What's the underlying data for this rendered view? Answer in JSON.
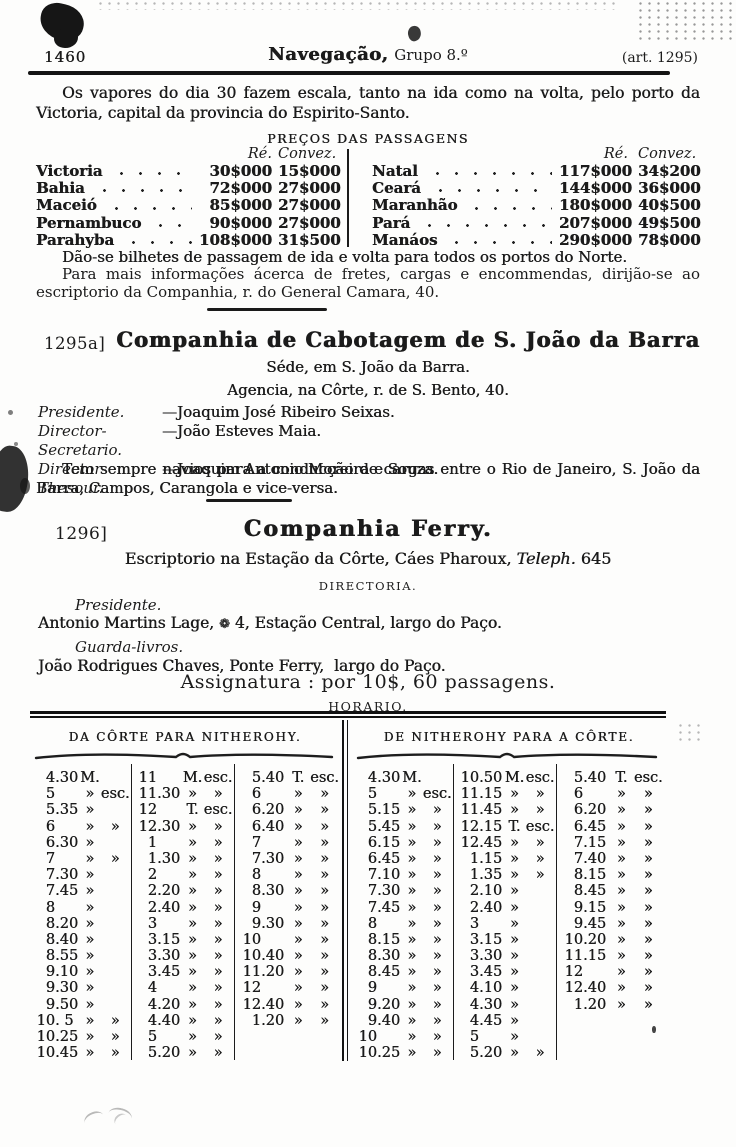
{
  "page": {
    "number": "1460",
    "header_title_bold": "Navegação,",
    "header_title_rest": "Grupo 8.º",
    "header_right": "(art. 1295)"
  },
  "intro": {
    "text": "Os vapores do dia 30 fazem escala, tanto na ida como na volta, pelo porto da Victoria, capital da provincia do Espirito-Santo."
  },
  "prices": {
    "title": "PREÇOS DAS PASSAGENS",
    "col_headers": [
      "Ré.",
      "Convez."
    ],
    "left": [
      {
        "name": "Victoria",
        "re": "30$000",
        "convez": "15$000"
      },
      {
        "name": "Bahia",
        "re": "72$000",
        "convez": "27$000"
      },
      {
        "name": "Maceió",
        "re": "85$000",
        "convez": "27$000"
      },
      {
        "name": "Pernambuco",
        "re": "90$000",
        "convez": "27$000"
      },
      {
        "name": "Parahyba",
        "re": "108$000",
        "convez": "31$500"
      }
    ],
    "right": [
      {
        "name": "Natal",
        "re": "117$000",
        "convez": "34$200"
      },
      {
        "name": "Ceará",
        "re": "144$000",
        "convez": "36$000"
      },
      {
        "name": "Maranhão",
        "re": "180$000",
        "convez": "40$500"
      },
      {
        "name": "Pará",
        "re": "207$000",
        "convez": "49$500"
      },
      {
        "name": "Manáos",
        "re": "290$000",
        "convez": "78$000"
      }
    ],
    "note1": "Dão-se bilhetes de passagem de ida e volta para todos os portos do Norte.",
    "note2": "Para mais informações ácerca de fretes, cargas e encommendas, dirijão-se ao escriptorio da Companhia, r. do General Camara, 40."
  },
  "cabotagem": {
    "ref": "1295a]",
    "title": "Companhia de Cabotagem de S. João da Barra",
    "line1": "Séde, em S. João da Barra.",
    "line2": "Agencia, na Côrte, r. de S. Bento, 40.",
    "officers": [
      {
        "role": "Presidente.",
        "name": "—Joaquim José Ribeiro Seixas."
      },
      {
        "role": "Director-Secretario.",
        "name": "—João Esteves Maia."
      },
      {
        "role": "Director-Thesour.",
        "name": "—Joaquim Antonio Moreira e Souza."
      }
    ],
    "note": "Tem sempre navios para a conducção de cargas entre o Rio de Janeiro, S. João da Barra, Campos, Carangola e vice-versa."
  },
  "ferry": {
    "ref": "1296]",
    "title": "Companhia Ferry.",
    "office_pre": "Escriptorio na Estação da Côrte, Cáes Pharoux, ",
    "office_teleph": "Teleph.",
    "office_num": " 645",
    "directoria": "DIRECTORIA.",
    "president_role": "Presidente.",
    "president_pre": "Antonio Martins Lage, ",
    "president_ornament": "❁",
    "president_post": " 4, Estação Central, largo do Paço.",
    "bookkeeper_role": "Guarda-livros.",
    "bookkeeper_line": "João Rodrigues Chaves, Ponte Ferry,  largo do Paço.",
    "signature": "Assignatura : por 10$, 60 passagens.",
    "horario_title": "HORARIO."
  },
  "horario": {
    "left_header": "DA CÔRTE PARA NITHEROHY.",
    "right_header": "DE NITHEROHY PARA A CÔRTE.",
    "columns": [
      {
        "entries": [
          {
            "t": "4.30",
            "u": "M.",
            "e": ""
          },
          {
            "t": "5",
            "u": "»",
            "e": "esc."
          },
          {
            "t": "5.35",
            "u": "»",
            "e": ""
          },
          {
            "t": "6",
            "u": "»",
            "e": "»"
          },
          {
            "t": "6.30",
            "u": "»",
            "e": ""
          },
          {
            "t": "7",
            "u": "»",
            "e": "»"
          },
          {
            "t": "7.30",
            "u": "»",
            "e": ""
          },
          {
            "t": "7.45",
            "u": "»",
            "e": ""
          },
          {
            "t": "8",
            "u": "»",
            "e": ""
          },
          {
            "t": "8.20",
            "u": "»",
            "e": ""
          },
          {
            "t": "8.40",
            "u": "»",
            "e": ""
          },
          {
            "t": "8.55",
            "u": "»",
            "e": ""
          },
          {
            "t": "9.10",
            "u": "»",
            "e": ""
          },
          {
            "t": "9.30",
            "u": "»",
            "e": ""
          },
          {
            "t": "9.50",
            "u": "»",
            "e": ""
          },
          {
            "t": "10. 5",
            "u": "»",
            "e": "»"
          },
          {
            "t": "10.25",
            "u": "»",
            "e": "»"
          },
          {
            "t": "10.45",
            "u": "»",
            "e": "»"
          }
        ]
      },
      {
        "entries": [
          {
            "t": "11",
            "u": "M.",
            "e": "esc."
          },
          {
            "t": "11.30",
            "u": "»",
            "e": "»"
          },
          {
            "t": "12",
            "u": "T.",
            "e": "esc."
          },
          {
            "t": "12.30",
            "u": "»",
            "e": "»"
          },
          {
            "t": "1",
            "u": "»",
            "e": "»"
          },
          {
            "t": "1.30",
            "u": "»",
            "e": "»"
          },
          {
            "t": "2",
            "u": "»",
            "e": "»"
          },
          {
            "t": "2.20",
            "u": "»",
            "e": "»"
          },
          {
            "t": "2.40",
            "u": "»",
            "e": "»"
          },
          {
            "t": "3",
            "u": "»",
            "e": "»"
          },
          {
            "t": "3.15",
            "u": "»",
            "e": "»"
          },
          {
            "t": "3.30",
            "u": "»",
            "e": "»"
          },
          {
            "t": "3.45",
            "u": "»",
            "e": "»"
          },
          {
            "t": "4",
            "u": "»",
            "e": "»"
          },
          {
            "t": "4.20",
            "u": "»",
            "e": "»"
          },
          {
            "t": "4.40",
            "u": "»",
            "e": "»"
          },
          {
            "t": "5",
            "u": "»",
            "e": "»"
          },
          {
            "t": "5.20",
            "u": "»",
            "e": "»"
          }
        ]
      },
      {
        "entries": [
          {
            "t": "5.40",
            "u": "T.",
            "e": "esc."
          },
          {
            "t": "6",
            "u": "»",
            "e": "»"
          },
          {
            "t": "6.20",
            "u": "»",
            "e": "»"
          },
          {
            "t": "6.40",
            "u": "»",
            "e": "»"
          },
          {
            "t": "7",
            "u": "»",
            "e": "»"
          },
          {
            "t": "7.30",
            "u": "»",
            "e": "»"
          },
          {
            "t": "8",
            "u": "»",
            "e": "»"
          },
          {
            "t": "8.30",
            "u": "»",
            "e": "»"
          },
          {
            "t": "9",
            "u": "»",
            "e": "»"
          },
          {
            "t": "9.30",
            "u": "»",
            "e": "»"
          },
          {
            "t": "10",
            "u": "»",
            "e": "»"
          },
          {
            "t": "10.40",
            "u": "»",
            "e": "»"
          },
          {
            "t": "11.20",
            "u": "»",
            "e": "»"
          },
          {
            "t": "12",
            "u": "»",
            "e": "»"
          },
          {
            "t": "12.40",
            "u": "»",
            "e": "»"
          },
          {
            "t": "1.20",
            "u": "»",
            "e": "»"
          }
        ]
      },
      {
        "entries": [
          {
            "t": "4.30",
            "u": "M.",
            "e": ""
          },
          {
            "t": "5",
            "u": "»",
            "e": "esc."
          },
          {
            "t": "5.15",
            "u": "»",
            "e": "»"
          },
          {
            "t": "5.45",
            "u": "»",
            "e": "»"
          },
          {
            "t": "6.15",
            "u": "»",
            "e": "»"
          },
          {
            "t": "6.45",
            "u": "»",
            "e": "»"
          },
          {
            "t": "7.10",
            "u": "»",
            "e": "»"
          },
          {
            "t": "7.30",
            "u": "»",
            "e": "»"
          },
          {
            "t": "7.45",
            "u": "»",
            "e": "»"
          },
          {
            "t": "8",
            "u": "»",
            "e": "»"
          },
          {
            "t": "8.15",
            "u": "»",
            "e": "»"
          },
          {
            "t": "8.30",
            "u": "»",
            "e": "»"
          },
          {
            "t": "8.45",
            "u": "»",
            "e": "»"
          },
          {
            "t": "9",
            "u": "»",
            "e": "»"
          },
          {
            "t": "9.20",
            "u": "»",
            "e": "»"
          },
          {
            "t": "9.40",
            "u": "»",
            "e": "»"
          },
          {
            "t": "10",
            "u": "»",
            "e": "»"
          },
          {
            "t": "10.25",
            "u": "»",
            "e": "»"
          }
        ]
      },
      {
        "entries": [
          {
            "t": "10.50",
            "u": "M.",
            "e": "esc."
          },
          {
            "t": "11.15",
            "u": "»",
            "e": "»"
          },
          {
            "t": "11.45",
            "u": "»",
            "e": "»"
          },
          {
            "t": "12.15",
            "u": "T.",
            "e": "esc."
          },
          {
            "t": "12.45",
            "u": "»",
            "e": "»"
          },
          {
            "t": "1.15",
            "u": "»",
            "e": "»"
          },
          {
            "t": "1.35",
            "u": "»",
            "e": "»"
          },
          {
            "t": "2.10",
            "u": "»",
            "e": ""
          },
          {
            "t": "2.40",
            "u": "»",
            "e": ""
          },
          {
            "t": "3",
            "u": "»",
            "e": ""
          },
          {
            "t": "3.15",
            "u": "»",
            "e": ""
          },
          {
            "t": "3.30",
            "u": "»",
            "e": ""
          },
          {
            "t": "3.45",
            "u": "»",
            "e": ""
          },
          {
            "t": "4.10",
            "u": "»",
            "e": ""
          },
          {
            "t": "4.30",
            "u": "»",
            "e": ""
          },
          {
            "t": "4.45",
            "u": "»",
            "e": ""
          },
          {
            "t": "5",
            "u": "»",
            "e": ""
          },
          {
            "t": "5.20",
            "u": "»",
            "e": "»"
          }
        ]
      },
      {
        "entries": [
          {
            "t": "5.40",
            "u": "T.",
            "e": "esc."
          },
          {
            "t": "6",
            "u": "»",
            "e": "»"
          },
          {
            "t": "6.20",
            "u": "»",
            "e": "»"
          },
          {
            "t": "6.45",
            "u": "»",
            "e": "»"
          },
          {
            "t": "7.15",
            "u": "»",
            "e": "»"
          },
          {
            "t": "7.40",
            "u": "»",
            "e": "»"
          },
          {
            "t": "8.15",
            "u": "»",
            "e": "»"
          },
          {
            "t": "8.45",
            "u": "»",
            "e": "»"
          },
          {
            "t": "9.15",
            "u": "»",
            "e": "»"
          },
          {
            "t": "9.45",
            "u": "»",
            "e": "»"
          },
          {
            "t": "10.20",
            "u": "»",
            "e": "»"
          },
          {
            "t": "11.15",
            "u": "»",
            "e": "»"
          },
          {
            "t": "12",
            "u": "»",
            "e": "»"
          },
          {
            "t": "12.40",
            "u": "»",
            "e": "»"
          },
          {
            "t": "1.20",
            "u": "»",
            "e": "»"
          }
        ]
      }
    ]
  }
}
